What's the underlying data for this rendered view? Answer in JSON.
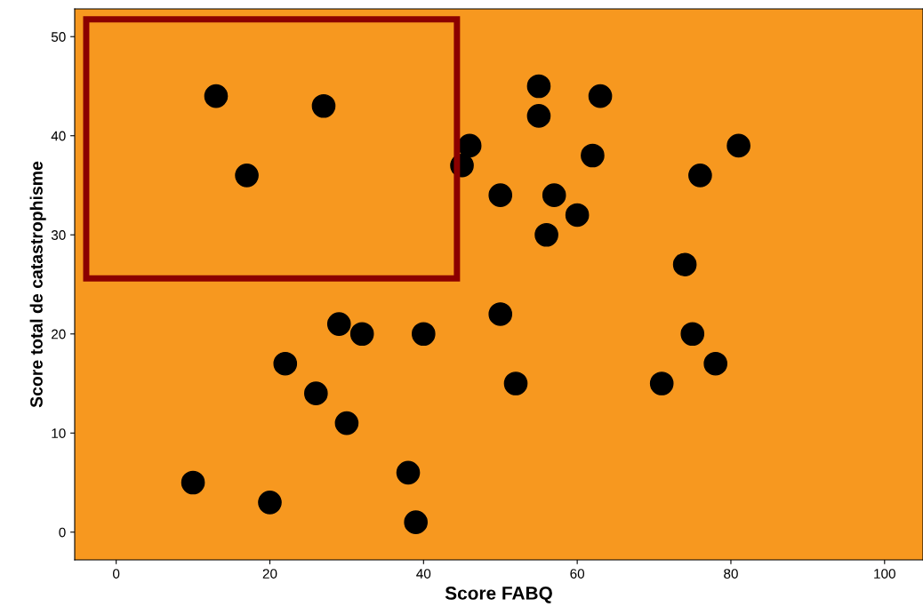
{
  "chart_data": {
    "type": "scatter",
    "xlabel": "Score FABQ",
    "ylabel": "Score total de catastrophisme",
    "x": [
      13,
      27,
      17,
      55,
      63,
      55,
      46,
      45,
      81,
      62,
      76,
      50,
      57,
      60,
      56,
      74,
      50,
      29,
      32,
      40,
      75,
      22,
      78,
      26,
      52,
      71,
      30,
      38,
      10,
      20,
      39
    ],
    "series": [
      {
        "color": "#000000",
        "values": [
          44,
          43,
          36,
          45,
          44,
          42,
          39,
          37,
          39,
          38,
          36,
          34,
          34,
          32,
          30,
          27,
          22,
          21,
          20,
          20,
          20,
          17,
          17,
          14,
          15,
          15,
          11,
          6,
          5,
          3,
          1
        ]
      }
    ],
    "xlim": [
      -5.4,
      105
    ],
    "ylim": [
      -2.8,
      52.8
    ],
    "xticks": [
      0,
      20,
      40,
      60,
      80,
      100
    ],
    "yticks": [
      0,
      10,
      20,
      30,
      40,
      50
    ],
    "marker": "circle",
    "grid": false,
    "legend": false
  }
}
